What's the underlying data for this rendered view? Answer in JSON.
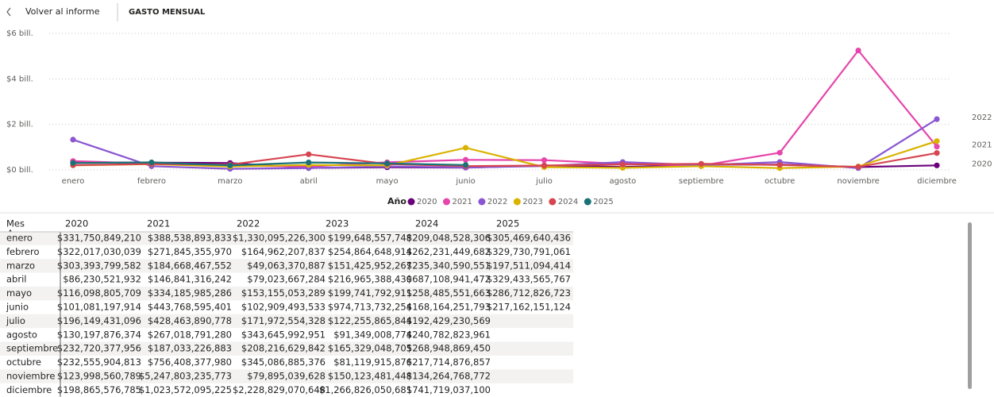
{
  "header": {
    "back": "Volver al informe",
    "title": "GASTO MENSUAL"
  },
  "chart_data": {
    "type": "line",
    "categories": [
      "enero",
      "febrero",
      "marzo",
      "abril",
      "mayo",
      "junio",
      "julio",
      "agosto",
      "septiembre",
      "octubre",
      "noviembre",
      "diciembre"
    ],
    "series": [
      {
        "name": "2020",
        "color": "#6b007b",
        "values": [
          0.332,
          0.322,
          0.303,
          0.086,
          0.116,
          0.101,
          0.196,
          0.13,
          0.233,
          0.233,
          0.124,
          0.199
        ]
      },
      {
        "name": "2021",
        "color": "#e645ab",
        "values": [
          0.389,
          0.272,
          0.185,
          0.147,
          0.334,
          0.444,
          0.428,
          0.267,
          0.187,
          0.756,
          5.248,
          1.024
        ]
      },
      {
        "name": "2022",
        "color": "#8a56d2",
        "values": [
          1.33,
          0.165,
          0.049,
          0.079,
          0.153,
          0.103,
          0.172,
          0.344,
          0.208,
          0.345,
          0.08,
          2.229
        ]
      },
      {
        "name": "2023",
        "color": "#d9b300",
        "values": [
          0.2,
          0.255,
          0.151,
          0.217,
          0.2,
          0.975,
          0.122,
          0.091,
          0.165,
          0.081,
          0.15,
          1.267
        ]
      },
      {
        "name": "2024",
        "color": "#d64550",
        "values": [
          0.209,
          0.262,
          0.235,
          0.687,
          0.258,
          0.168,
          0.192,
          0.241,
          0.269,
          0.218,
          0.134,
          0.742
        ]
      },
      {
        "name": "2025",
        "color": "#197278",
        "values": [
          0.305,
          0.33,
          0.198,
          0.329,
          0.287,
          0.217,
          null,
          null,
          null,
          null,
          null,
          null
        ]
      }
    ],
    "ylim": [
      0,
      6
    ],
    "yticks": [
      {
        "value": 0,
        "label": "$0 bill."
      },
      {
        "value": 2,
        "label": "$2 bill."
      },
      {
        "value": 4,
        "label": "$4 bill."
      },
      {
        "value": 6,
        "label": "$6 bill."
      }
    ],
    "grid": true,
    "legend_title": "Año",
    "legend": "bottom"
  },
  "table": {
    "columns": [
      "Mes",
      "2020",
      "2021",
      "2022",
      "2023",
      "2024",
      "2025"
    ],
    "rows": [
      [
        "enero",
        "$331,750,849,210",
        "$388,538,893,833",
        "$1,330,095,226,300",
        "$199,648,557,748",
        "$209,048,528,306",
        "$305,469,640,436"
      ],
      [
        "febrero",
        "$322,017,030,039",
        "$271,845,355,970",
        "$164,962,207,837",
        "$254,864,648,914",
        "$262,231,449,682",
        "$329,730,791,061"
      ],
      [
        "marzo",
        "$303,393,799,582",
        "$184,668,467,552",
        "$49,063,370,887",
        "$151,425,952,267",
        "$235,340,590,551",
        "$197,511,094,414"
      ],
      [
        "abril",
        "$86,230,521,932",
        "$146,841,316,242",
        "$79,023,667,284",
        "$216,965,388,430",
        "$687,108,941,472",
        "$329,433,565,767"
      ],
      [
        "mayo",
        "$116,098,805,709",
        "$334,185,985,286",
        "$153,155,053,289",
        "$199,741,792,911",
        "$258,485,551,663",
        "$286,712,826,723"
      ],
      [
        "junio",
        "$101,081,197,914",
        "$443,768,595,401",
        "$102,909,493,533",
        "$974,713,732,254",
        "$168,164,251,793",
        "$217,162,151,124"
      ],
      [
        "julio",
        "$196,149,431,096",
        "$428,463,890,778",
        "$171,972,554,328",
        "$122,255,865,844",
        "$192,429,230,569"
      ],
      [
        "agosto",
        "$130,197,876,374",
        "$267,018,791,280",
        "$343,645,992,951",
        "$91,349,008,774",
        "$240,782,823,961"
      ],
      [
        "septiembre",
        "$232,720,377,956",
        "$187,033,226,883",
        "$208,216,629,842",
        "$165,329,048,705",
        "$268,948,869,450"
      ],
      [
        "octubre",
        "$232,555,904,813",
        "$756,408,377,980",
        "$345,086,885,376",
        "$81,119,915,876",
        "$217,714,876,857"
      ],
      [
        "noviembre",
        "$123,998,560,789",
        "$5,247,803,235,773",
        "$79,895,039,628",
        "$150,123,481,448",
        "$134,264,768,772"
      ],
      [
        "diciembre",
        "$198,865,576,785",
        "$1,023,572,095,225",
        "$2,228,829,070,648",
        "$1,266,826,050,681",
        "$741,719,037,100"
      ]
    ]
  }
}
